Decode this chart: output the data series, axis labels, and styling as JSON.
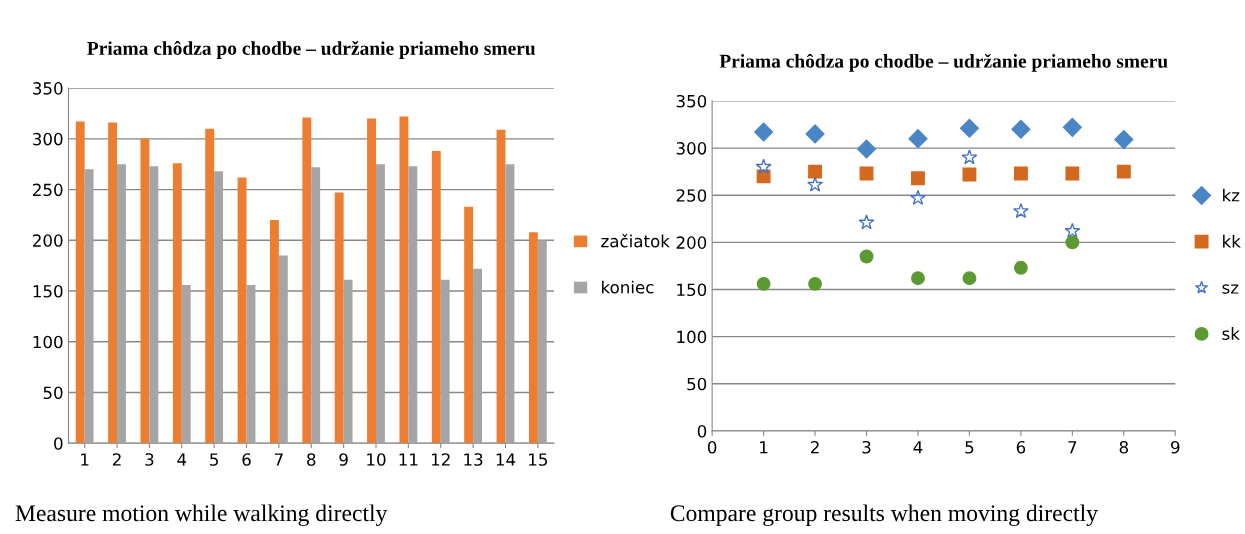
{
  "chart_data": [
    {
      "type": "bar",
      "title": "Priama chôdza po chodbe – udržanie priameho smeru",
      "categories": [
        "1",
        "2",
        "3",
        "4",
        "5",
        "6",
        "7",
        "8",
        "9",
        "10",
        "11",
        "12",
        "13",
        "14",
        "15"
      ],
      "series": [
        {
          "name": "začiatok",
          "color": "#ed7d31",
          "values": [
            317,
            316,
            300,
            276,
            310,
            262,
            220,
            321,
            247,
            320,
            322,
            288,
            233,
            309,
            208
          ]
        },
        {
          "name": "koniec",
          "color": "#a5a5a5",
          "values": [
            270,
            275,
            273,
            156,
            268,
            156,
            185,
            272,
            161,
            275,
            273,
            161,
            172,
            275,
            200
          ]
        }
      ],
      "ylim": [
        0,
        350
      ],
      "yticks": [
        0,
        50,
        100,
        150,
        200,
        250,
        300,
        350
      ],
      "grid": "y",
      "legend": "right",
      "annotations": [
        "Measure motion while walking directly"
      ]
    },
    {
      "type": "scatter",
      "title": "Priama chôdza po chodbe – udržanie priameho smeru",
      "x": [
        1,
        2,
        3,
        4,
        5,
        6,
        7,
        8
      ],
      "series": [
        {
          "name": "kz",
          "color": "#4a86c5",
          "marker": "diamond",
          "values": [
            317,
            315,
            299,
            310,
            321,
            320,
            322,
            309
          ]
        },
        {
          "name": "kk",
          "color": "#d2691e",
          "marker": "square",
          "values": [
            270,
            275,
            273,
            268,
            272,
            273,
            273,
            275
          ]
        },
        {
          "name": "sz",
          "color": "#4472c4",
          "marker": "star",
          "values": [
            280,
            261,
            221,
            247,
            290,
            233,
            212,
            null
          ]
        },
        {
          "name": "sk",
          "color": "#5b9a32",
          "marker": "circle",
          "values": [
            156,
            156,
            185,
            162,
            162,
            173,
            200,
            null
          ]
        }
      ],
      "xlim": [
        0,
        9
      ],
      "xticks": [
        0,
        1,
        2,
        3,
        4,
        5,
        6,
        7,
        8,
        9
      ],
      "ylim": [
        0,
        350
      ],
      "yticks": [
        0,
        50,
        100,
        150,
        200,
        250,
        300,
        350
      ],
      "grid": "y",
      "legend": "right",
      "annotations": [
        "Compare group results when moving directly"
      ]
    }
  ]
}
